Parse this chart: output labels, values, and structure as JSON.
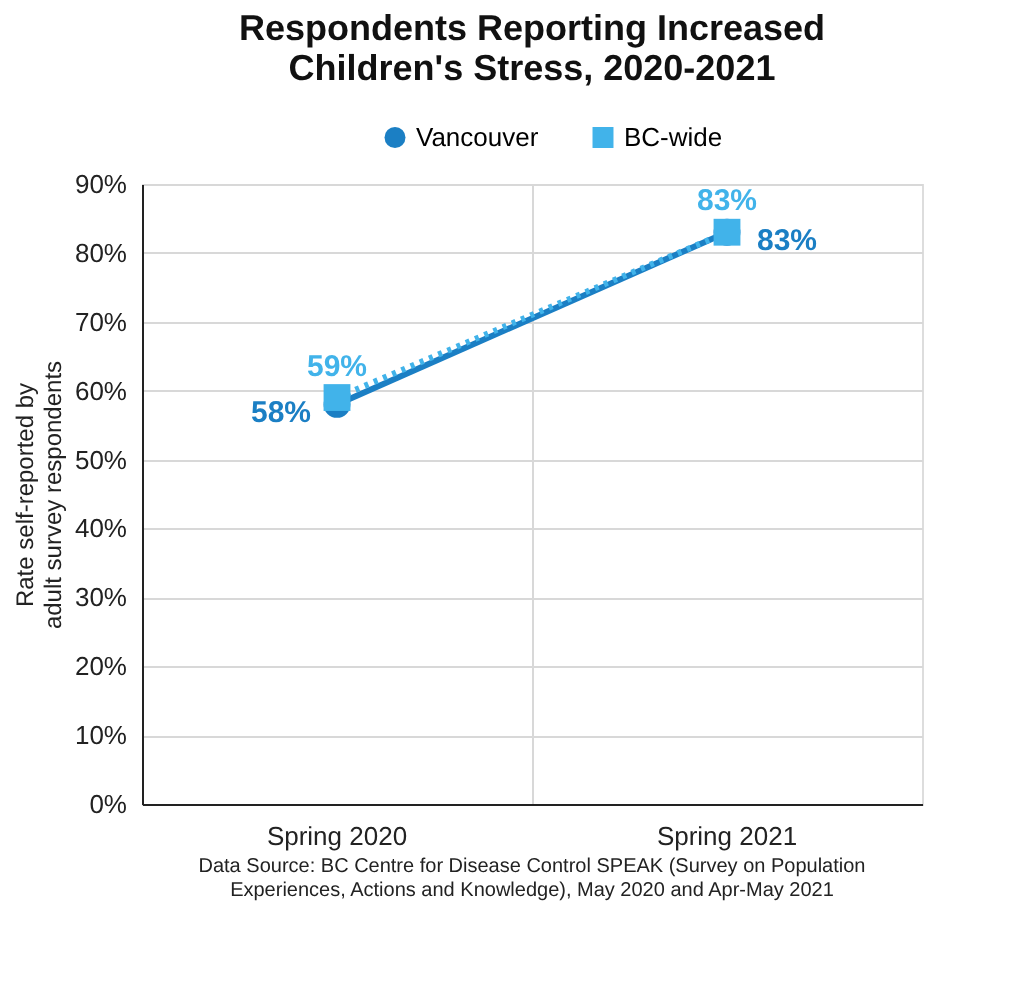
{
  "chart_data": {
    "type": "line",
    "title": "Respondents Reporting Increased\nChildren's Stress, 2020-2021",
    "ylabel": "Rate self-reported by\nadult survey respondents",
    "categories": [
      "Spring 2020",
      "Spring 2021"
    ],
    "series": [
      {
        "name": "Vancouver",
        "color": "#1b7fc4",
        "values": [
          58,
          83
        ],
        "value_labels": [
          "58%",
          "83%"
        ],
        "marker": "circle",
        "line_style": "solid"
      },
      {
        "name": "BC-wide",
        "color": "#41b3ea",
        "values": [
          59,
          83
        ],
        "value_labels": [
          "59%",
          "83%"
        ],
        "marker": "square",
        "line_style": "dotted"
      }
    ],
    "ylim": [
      0,
      90
    ],
    "yticks": [
      {
        "value": 0,
        "label": "0%"
      },
      {
        "value": 10,
        "label": "10%"
      },
      {
        "value": 20,
        "label": "20%"
      },
      {
        "value": 30,
        "label": "30%"
      },
      {
        "value": 40,
        "label": "40%"
      },
      {
        "value": 50,
        "label": "50%"
      },
      {
        "value": 60,
        "label": "60%"
      },
      {
        "value": 70,
        "label": "70%"
      },
      {
        "value": 80,
        "label": "80%"
      },
      {
        "value": 90,
        "label": "90%"
      }
    ],
    "grid": true,
    "legend": "top",
    "annotations": [
      "Data Source: BC Centre for Disease Control SPEAK (Survey on Population\nExperiences, Actions and Knowledge), May 2020 and Apr-May 2021"
    ]
  }
}
